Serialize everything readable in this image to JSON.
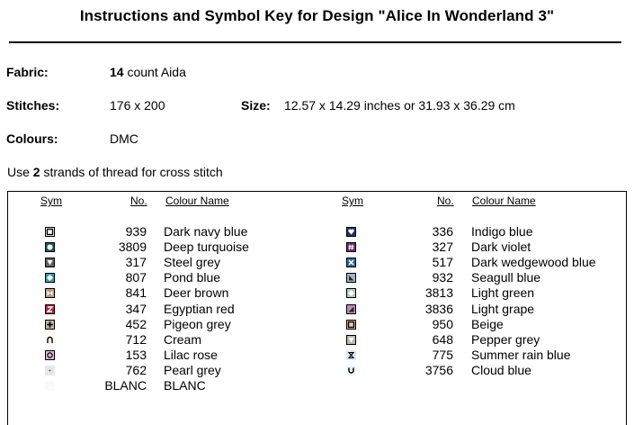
{
  "title": "Instructions and Symbol Key for Design \"Alice In Wonderland 3\"",
  "fabric": {
    "label": "Fabric:",
    "count_bold": "14",
    "rest": " count Aida"
  },
  "stitches": {
    "label": "Stitches:",
    "value": "176 x 200"
  },
  "size": {
    "label": "Size:",
    "value": "12.57 x 14.29 inches or 31.93 x 36.29 cm"
  },
  "colours": {
    "label": "Colours:",
    "value": "DMC"
  },
  "instruction": {
    "pre": "Use ",
    "bold": "2",
    "post": " strands of thread for cross stitch"
  },
  "headers": {
    "sym": "Sym",
    "no": "No.",
    "name": "Colour Name"
  },
  "left": [
    {
      "no": "939",
      "name": "Dark navy blue",
      "color": "#ffffff",
      "icon": "square-outline-icon"
    },
    {
      "no": "3809",
      "name": "Deep turquoise",
      "color": "#1f5a5e",
      "icon": "circle-icon"
    },
    {
      "no": "317",
      "name": "Steel grey",
      "color": "#5f6366",
      "icon": "triangle-down-icon"
    },
    {
      "no": "807",
      "name": "Pond blue",
      "color": "#3b9aa8",
      "icon": "diamond-icon"
    },
    {
      "no": "841",
      "name": "Deer brown",
      "color": "#b89780",
      "icon": "bowtie-icon"
    },
    {
      "no": "347",
      "name": "Egyptian red",
      "color": "#b2263a",
      "icon": "letter-z-icon"
    },
    {
      "no": "452",
      "name": "Pigeon grey",
      "color": "#c2b2ad",
      "icon": "plus-icon"
    },
    {
      "no": "712",
      "name": "Cream",
      "color": "#fffbef",
      "icon": "arch-icon"
    },
    {
      "no": "153",
      "name": "Lilac rose",
      "color": "#e0b8d8",
      "icon": "circle-outline-icon"
    },
    {
      "no": "762",
      "name": "Pearl grey",
      "color": "#e6e8e8",
      "icon": "dot-icon"
    },
    {
      "no": "BLANC",
      "name": "BLANC",
      "color": "#fafafa",
      "icon": "blank-icon"
    }
  ],
  "right": [
    {
      "no": "336",
      "name": "Indigo blue",
      "color": "#233562",
      "icon": "heart-icon"
    },
    {
      "no": "327",
      "name": "Dark violet",
      "color": "#6b2c6e",
      "icon": "hash-icon"
    },
    {
      "no": "517",
      "name": "Dark wedgewood blue",
      "color": "#2f6c99",
      "icon": "x-mark-icon"
    },
    {
      "no": "932",
      "name": "Seagull blue",
      "color": "#a0b4c6",
      "icon": "corner-triangle-icon"
    },
    {
      "no": "3813",
      "name": "Light green",
      "color": "#b2cbb6",
      "icon": "diamond-icon"
    },
    {
      "no": "3836",
      "name": "Light grape",
      "color": "#b48fb5",
      "icon": "half-triangle-icon"
    },
    {
      "no": "950",
      "name": "Beige",
      "color": "#ecc8b0",
      "icon": "square-outline-icon"
    },
    {
      "no": "648",
      "name": "Pepper grey",
      "color": "#bcb9ad",
      "icon": "triangle-down-icon"
    },
    {
      "no": "775",
      "name": "Summer rain blue",
      "color": "#d9eaf3",
      "icon": "hourglass-icon"
    },
    {
      "no": "3756",
      "name": "Cloud blue",
      "color": "#eef6fa",
      "icon": "cup-icon"
    }
  ]
}
